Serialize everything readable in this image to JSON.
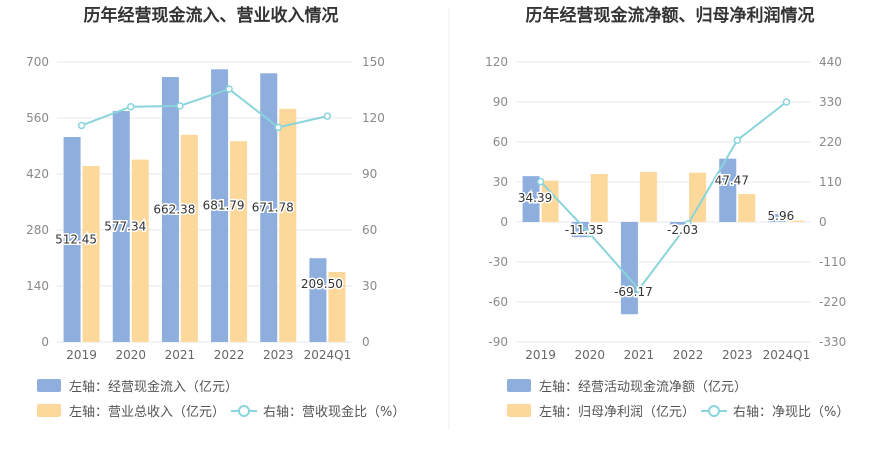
{
  "chart_data": [
    {
      "type": "bar",
      "title": "历年经营现金流入、营业收入情况",
      "categories": [
        "2019",
        "2020",
        "2021",
        "2022",
        "2023",
        "2024Q1"
      ],
      "left_axis": {
        "ticks": [
          "0",
          "140",
          "280",
          "420",
          "560",
          "700"
        ],
        "ylim": [
          0,
          700
        ]
      },
      "right_axis": {
        "ticks": [
          "0",
          "30",
          "60",
          "90",
          "120",
          "150"
        ],
        "ylim": [
          0,
          150
        ]
      },
      "series": [
        {
          "name": "左轴：经营现金流入（亿元）",
          "type": "bar",
          "axis": "left",
          "color": "#8eaede",
          "values": [
            512.45,
            577.34,
            662.38,
            681.79,
            671.78,
            209.5
          ],
          "labels": [
            "512.45",
            "577.34",
            "662.38",
            "681.79",
            "671.78",
            "209.50"
          ]
        },
        {
          "name": "左轴：营业总收入（亿元）",
          "type": "bar",
          "axis": "left",
          "color": "#fdd89b",
          "values": [
            440,
            456,
            518,
            502,
            583,
            175
          ]
        },
        {
          "name": "右轴：营收现金比（%）",
          "type": "line",
          "axis": "right",
          "color": "#8ad4dc",
          "values": [
            116,
            126,
            126.5,
            135.5,
            115,
            121
          ]
        }
      ],
      "legend_position": "bottom-left",
      "grid": true
    },
    {
      "type": "bar",
      "title": "历年经营现金流净额、归母净利润情况",
      "categories": [
        "2019",
        "2020",
        "2021",
        "2022",
        "2023",
        "2024Q1"
      ],
      "left_axis": {
        "ticks": [
          "-90",
          "-60",
          "-30",
          "0",
          "30",
          "60",
          "90",
          "120"
        ],
        "ylim": [
          -90,
          120
        ]
      },
      "right_axis": {
        "ticks": [
          "-330",
          "-220",
          "-110",
          "0",
          "110",
          "220",
          "330",
          "440"
        ],
        "ylim": [
          -330,
          440
        ]
      },
      "series": [
        {
          "name": "左轴：经营活动现金流净额（亿元）",
          "type": "bar",
          "axis": "left",
          "color": "#8eaede",
          "values": [
            34.39,
            -11.35,
            -69.17,
            -2.03,
            47.47,
            5.96
          ],
          "labels": [
            "34.39",
            "-11.35",
            "-69.17",
            "-2.03",
            "47.47",
            "5.96"
          ]
        },
        {
          "name": "左轴：归母净利润（亿元）",
          "type": "bar",
          "axis": "left",
          "color": "#fdd89b",
          "values": [
            31,
            36,
            37.5,
            37,
            21,
            1
          ]
        },
        {
          "name": "右轴：净现比（%）",
          "type": "line",
          "axis": "right",
          "color": "#8ad4dc",
          "values": [
            111,
            -32,
            -185,
            -5,
            225,
            330
          ]
        }
      ],
      "legend_position": "bottom-left",
      "grid": true
    }
  ]
}
